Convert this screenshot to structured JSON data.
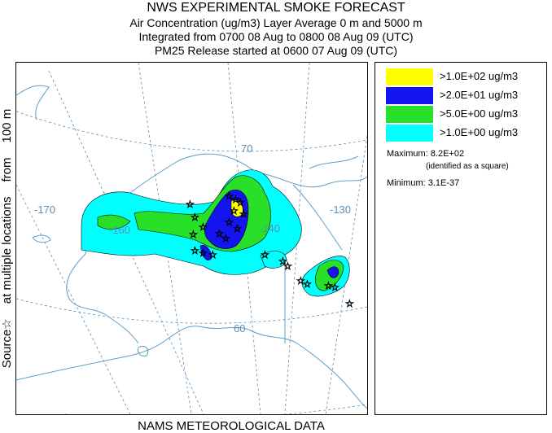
{
  "header": {
    "title": "NWS EXPERIMENTAL SMOKE FORECAST",
    "line2": "Air Concentration (ug/m3) Layer Average    0 m and  5000 m",
    "line3": "Integrated from 0700 08 Aug to 0800 08 Aug 09 (UTC)",
    "line4": "PM25 Release started at 0600 07 Aug 09 (UTC)"
  },
  "side_label": {
    "source": "Source",
    "star": "☆",
    "locations": "at multiple locations",
    "from": "from",
    "height": "100 m"
  },
  "footer": "NAMS METEOROLOGICAL DATA",
  "map": {
    "graticule_labels": {
      "lon_170": "-170",
      "lon_160": "-160",
      "lon_140": "-140",
      "lon_130": "-130",
      "lat_70": "70",
      "lat_60": "60"
    },
    "colors": {
      "yellow": "#ffff00",
      "blue": "#1414f0",
      "green": "#28e028",
      "cyan": "#00ffff",
      "graticule": "#5b8fb8",
      "coast": "#5a9fc8"
    }
  },
  "legend": {
    "items": [
      {
        "label": ">1.0E+02 ug/m3",
        "color": "#ffff00"
      },
      {
        "label": ">2.0E+01 ug/m3",
        "color": "#1414f0"
      },
      {
        "label": ">5.0E+00 ug/m3",
        "color": "#28e028"
      },
      {
        "label": ">1.0E+00 ug/m3",
        "color": "#00ffff"
      }
    ],
    "maximum": "Maximum: 8.2E+02",
    "maximum_note": "(identified as a square)",
    "minimum": "Minimum: 3.1E-37"
  }
}
